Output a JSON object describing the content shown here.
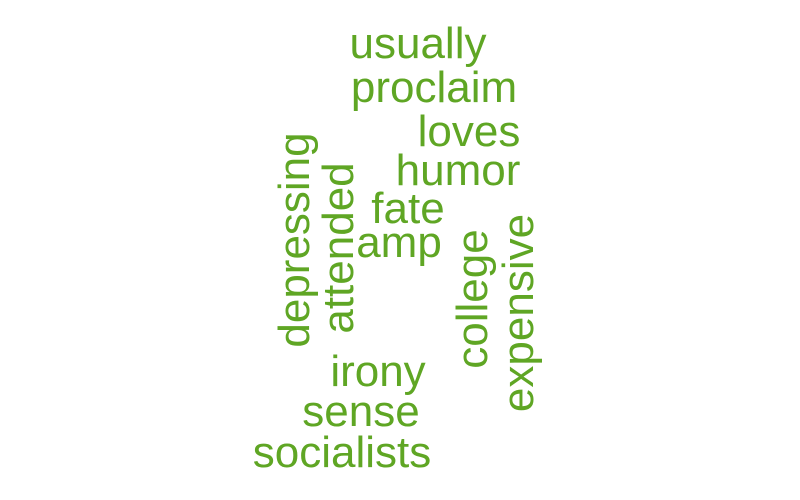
{
  "word_cloud": {
    "color": "#5fa624",
    "words": [
      {
        "text": "usually",
        "orientation": "horizontal"
      },
      {
        "text": "proclaim",
        "orientation": "horizontal"
      },
      {
        "text": "loves",
        "orientation": "horizontal"
      },
      {
        "text": "humor",
        "orientation": "horizontal"
      },
      {
        "text": "fate",
        "orientation": "horizontal"
      },
      {
        "text": "amp",
        "orientation": "horizontal"
      },
      {
        "text": "irony",
        "orientation": "horizontal"
      },
      {
        "text": "sense",
        "orientation": "horizontal"
      },
      {
        "text": "socialists",
        "orientation": "horizontal"
      },
      {
        "text": "depressing",
        "orientation": "vertical"
      },
      {
        "text": "attended",
        "orientation": "vertical"
      },
      {
        "text": "college",
        "orientation": "vertical"
      },
      {
        "text": "expensive",
        "orientation": "vertical"
      }
    ]
  }
}
